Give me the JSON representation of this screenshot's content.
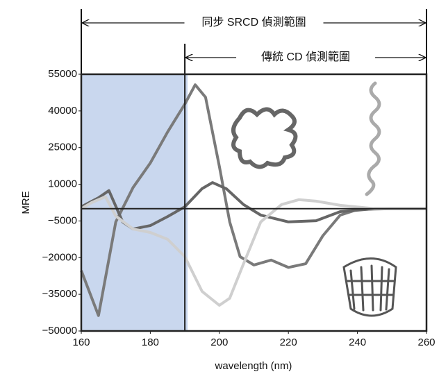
{
  "chart_data": {
    "type": "line",
    "xlabel": "wavelength (nm)",
    "ylabel": "MRE",
    "xlim": [
      160,
      260
    ],
    "xticks": [
      160,
      180,
      200,
      220,
      240,
      260
    ],
    "ylim": [
      -50000,
      55000
    ],
    "yticks": [
      {
        "value": -50000,
        "label": "−50000"
      },
      {
        "value": -35000,
        "label": "−35000"
      },
      {
        "value": -20000,
        "label": "−20000"
      },
      {
        "value": -5000,
        "label": "−5000"
      },
      10000,
      25000,
      40000,
      55000
    ],
    "hline": 0,
    "shaded_region": [
      160,
      190
    ],
    "shaded_color": "#c9d7ee",
    "annotations": [
      {
        "text": "同步 SRCD 偵測範圍",
        "x_range": [
          160,
          260
        ]
      },
      {
        "text": "傳統 CD 偵測範圍",
        "x_range": [
          190,
          260
        ]
      }
    ],
    "series": [
      {
        "color": "#7a7a7a",
        "x": [
          160,
          165,
          170,
          175,
          180,
          185,
          190,
          193,
          196,
          200,
          203,
          206,
          210,
          215,
          220,
          225,
          230,
          235,
          240,
          250,
          260
        ],
        "values": [
          -25300,
          -43700,
          -5400,
          8700,
          18700,
          31400,
          42800,
          50700,
          45600,
          17300,
          -5400,
          -19600,
          -23000,
          -21000,
          -24000,
          -22500,
          -11000,
          -2600,
          -300,
          0,
          0
        ]
      },
      {
        "color": "#666666",
        "x": [
          160,
          165,
          168,
          172,
          175,
          180,
          185,
          190,
          195,
          198,
          202,
          207,
          212,
          220,
          228,
          235,
          245,
          260
        ],
        "values": [
          800,
          4500,
          7400,
          -5400,
          -8300,
          -6900,
          -3200,
          800,
          8200,
          10700,
          8200,
          1700,
          -2600,
          -5400,
          -4900,
          -1200,
          0,
          0
        ]
      },
      {
        "color": "#cfcfcf",
        "x": [
          160,
          163,
          167,
          170,
          175,
          180,
          185,
          190,
          195,
          200,
          203,
          207,
          212,
          218,
          223,
          228,
          235,
          245,
          260
        ],
        "values": [
          0,
          2500,
          4900,
          -3000,
          -8300,
          -9700,
          -12500,
          -19600,
          -33800,
          -39500,
          -36600,
          -22500,
          -5400,
          1700,
          3700,
          3100,
          1400,
          0,
          0
        ]
      }
    ]
  }
}
